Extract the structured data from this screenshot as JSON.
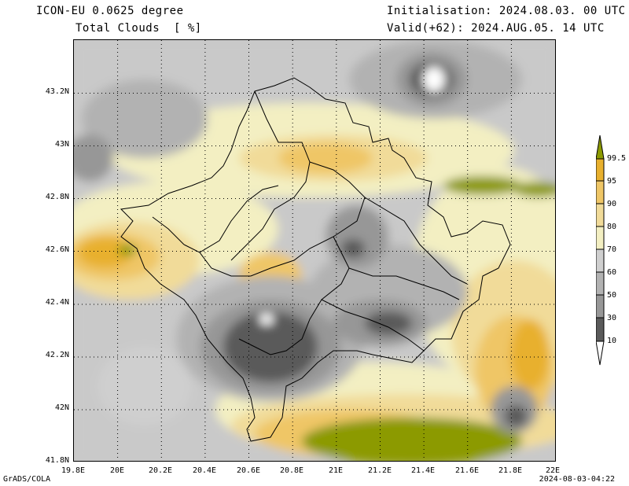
{
  "header": {
    "model": "ICON-EU 0.0625 degree",
    "variable": "Total Clouds  [ %]",
    "init": "Initialisation: 2024.08.03. 00 UTC",
    "valid": "Valid(+62): 2024.AUG.05. 14 UTC"
  },
  "axes": {
    "lat_ticks": [
      "43.2N",
      "43N",
      "42.8N",
      "42.6N",
      "42.4N",
      "42.2N",
      "42N",
      "41.8N"
    ],
    "lon_ticks": [
      "19.8E",
      "20E",
      "20.2E",
      "20.4E",
      "20.6E",
      "20.8E",
      "21E",
      "21.2E",
      "21.4E",
      "21.6E",
      "21.8E",
      "22E"
    ]
  },
  "colorbar": {
    "levels": [
      "99.5",
      "95",
      "90",
      "80",
      "70",
      "60",
      "50",
      "30",
      "10"
    ],
    "colors": [
      "#8c9a00",
      "#e8b02e",
      "#efc666",
      "#f1db99",
      "#f3efc2",
      "#cfcfcf",
      "#b2b2b2",
      "#979797",
      "#5a5a5a",
      "#ffffff"
    ]
  },
  "footer": {
    "left": "GrADS/COLA",
    "right": "2024-08-03-04:22"
  }
}
